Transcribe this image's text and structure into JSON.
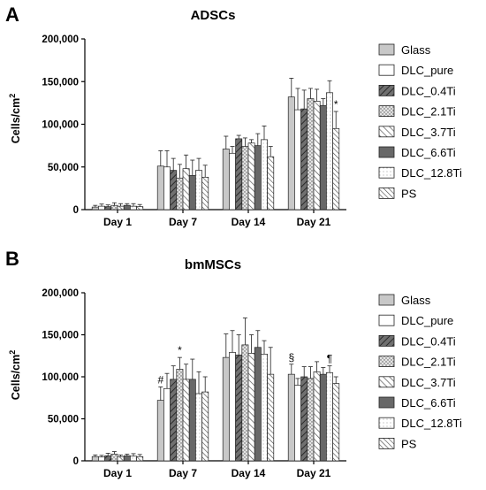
{
  "chart_data": [
    {
      "type": "bar",
      "panel_label": "A",
      "title": "ADSCs",
      "xlabel": "",
      "ylabel": "Cells/cm",
      "ylabel_superscript": "2",
      "ylim": [
        0,
        200000
      ],
      "yticks": [
        "0",
        "50,000",
        "100,000",
        "150,000",
        "200,000"
      ],
      "ytick_values": [
        0,
        50000,
        100000,
        150000,
        200000
      ],
      "categories": [
        "Day 1",
        "Day 7",
        "Day 14",
        "Day 21"
      ],
      "legend_position": "right",
      "series": [
        {
          "name": "Glass",
          "values": [
            3000,
            51000,
            71000,
            132000
          ],
          "errors": [
            2000,
            18000,
            15000,
            22000
          ]
        },
        {
          "name": "DLC_pure",
          "values": [
            4000,
            50000,
            66000,
            117000
          ],
          "errors": [
            2500,
            19000,
            8000,
            25000
          ]
        },
        {
          "name": "DLC_0.4Ti",
          "values": [
            3500,
            46000,
            83000,
            118000
          ],
          "errors": [
            2000,
            14000,
            4000,
            22000
          ]
        },
        {
          "name": "DLC_2.1Ti",
          "values": [
            5000,
            37000,
            74000,
            130000
          ],
          "errors": [
            3000,
            16000,
            10000,
            12000
          ]
        },
        {
          "name": "DLC_3.7Ti",
          "values": [
            4000,
            48000,
            78000,
            127000
          ],
          "errors": [
            3000,
            16000,
            4000,
            14000
          ]
        },
        {
          "name": "DLC_6.6Ti",
          "values": [
            5000,
            40000,
            75000,
            122000
          ],
          "errors": [
            2000,
            18000,
            14000,
            8000
          ]
        },
        {
          "name": "DLC_12.8Ti",
          "values": [
            4000,
            46000,
            82000,
            137000
          ],
          "errors": [
            3000,
            14000,
            16000,
            14000
          ]
        },
        {
          "name": "PS",
          "values": [
            3500,
            38000,
            62000,
            95000
          ],
          "errors": [
            2500,
            14000,
            12000,
            20000
          ]
        }
      ],
      "annotations": [
        {
          "text": "*",
          "category": "Day 21",
          "series": "PS"
        }
      ]
    },
    {
      "type": "bar",
      "panel_label": "B",
      "title": "bmMSCs",
      "xlabel": "",
      "ylabel": "Cells/cm",
      "ylabel_superscript": "2",
      "ylim": [
        0,
        200000
      ],
      "yticks": [
        "0",
        "50,000",
        "100,000",
        "150,000",
        "200,000"
      ],
      "ytick_values": [
        0,
        50000,
        100000,
        150000,
        200000
      ],
      "categories": [
        "Day 1",
        "Day 7",
        "Day 14",
        "Day 21"
      ],
      "legend_position": "right",
      "series": [
        {
          "name": "Glass",
          "values": [
            5000,
            72000,
            123000,
            103000
          ],
          "errors": [
            2000,
            16000,
            28000,
            12000
          ]
        },
        {
          "name": "DLC_pure",
          "values": [
            4500,
            86000,
            129000,
            90000
          ],
          "errors": [
            2000,
            18000,
            26000,
            8000
          ]
        },
        {
          "name": "DLC_0.4Ti",
          "values": [
            6000,
            97000,
            126000,
            100000
          ],
          "errors": [
            3000,
            16000,
            24000,
            12000
          ]
        },
        {
          "name": "DLC_2.1Ti",
          "values": [
            8000,
            109000,
            138000,
            98000
          ],
          "errors": [
            3000,
            14000,
            32000,
            14000
          ]
        },
        {
          "name": "DLC_3.7Ti",
          "values": [
            5000,
            97000,
            128000,
            106000
          ],
          "errors": [
            2000,
            18000,
            22000,
            12000
          ]
        },
        {
          "name": "DLC_6.6Ti",
          "values": [
            6000,
            97000,
            135000,
            103000
          ],
          "errors": [
            2000,
            24000,
            20000,
            8000
          ]
        },
        {
          "name": "DLC_12.8Ti",
          "values": [
            5500,
            80000,
            127000,
            105000
          ],
          "errors": [
            3000,
            26000,
            16000,
            8000
          ]
        },
        {
          "name": "PS",
          "values": [
            5000,
            82000,
            103000,
            92000
          ],
          "errors": [
            2500,
            18000,
            32000,
            8000
          ]
        }
      ],
      "annotations": [
        {
          "text": "#",
          "category": "Day 7",
          "series": "Glass"
        },
        {
          "text": "*",
          "category": "Day 7",
          "series": "DLC_2.1Ti"
        },
        {
          "text": "§",
          "category": "Day 21",
          "series": "Glass"
        },
        {
          "text": "¶",
          "category": "Day 21",
          "series": "DLC_12.8Ti"
        }
      ]
    }
  ],
  "legend": {
    "styles": [
      {
        "name": "Glass",
        "fill": "#c8c8c8",
        "pattern": "none"
      },
      {
        "name": "DLC_pure",
        "fill": "#ffffff",
        "pattern": "none"
      },
      {
        "name": "DLC_0.4Ti",
        "fill": "#707070",
        "pattern": "hatch-dark"
      },
      {
        "name": "DLC_2.1Ti",
        "fill": "#e4e4e4",
        "pattern": "dots"
      },
      {
        "name": "DLC_3.7Ti",
        "fill": "#ffffff",
        "pattern": "hatch-light"
      },
      {
        "name": "DLC_6.6Ti",
        "fill": "#686868",
        "pattern": "none"
      },
      {
        "name": "DLC_12.8Ti",
        "fill": "#ffffff",
        "pattern": "dots-fine"
      },
      {
        "name": "PS",
        "fill": "#ffffff",
        "pattern": "hatch-light-dense"
      }
    ]
  }
}
